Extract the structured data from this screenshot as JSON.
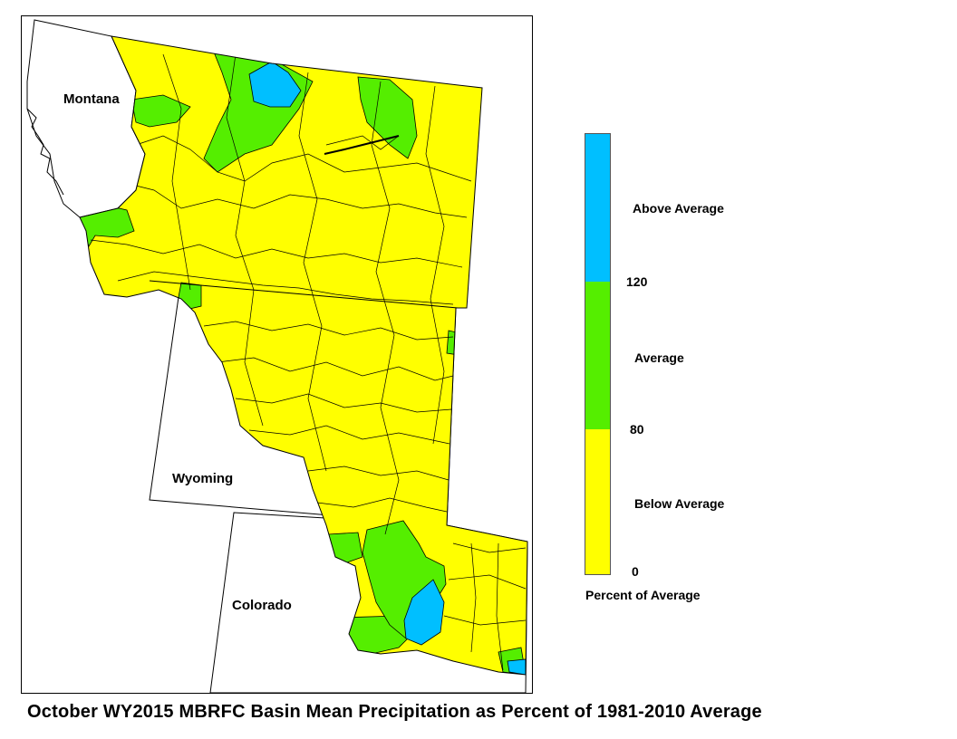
{
  "map": {
    "title": "October WY2015 MBRFC Basin Mean Precipitation as Percent of 1981-2010 Average",
    "states": [
      "Montana",
      "Wyoming",
      "Colorado"
    ]
  },
  "legend": {
    "categories": [
      {
        "label": "Above Average",
        "color": "#00bfff"
      },
      {
        "label": "Average",
        "color": "#55ee00"
      },
      {
        "label": "Below Average",
        "color": "#ffff00"
      }
    ],
    "breaks": [
      "120",
      "80",
      "0"
    ],
    "axis_label": "Percent of Average"
  },
  "colors": {
    "below": "#ffff00",
    "average": "#55ee00",
    "above": "#00bfff",
    "outline": "#000000"
  }
}
